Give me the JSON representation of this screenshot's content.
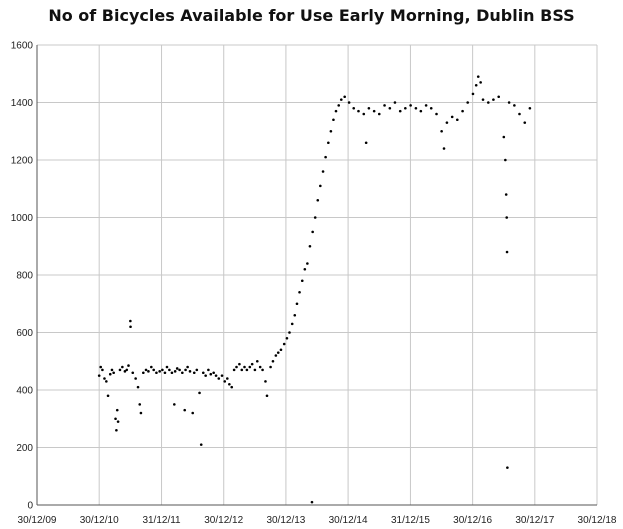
{
  "chart_data": {
    "type": "scatter",
    "title": "No of Bicycles Available for Use Early Morning, Dublin BSS",
    "xlabel": "",
    "ylabel": "",
    "x_axis": {
      "type": "date",
      "ticks": [
        "30/12/09",
        "30/12/10",
        "31/12/11",
        "30/12/12",
        "30/12/13",
        "30/12/14",
        "31/12/15",
        "30/12/16",
        "30/12/17",
        "30/12/18"
      ]
    },
    "ylim": [
      0,
      1600
    ],
    "y_ticks": [
      0,
      200,
      400,
      600,
      800,
      1000,
      1200,
      1400,
      1600
    ],
    "grid": true,
    "marker_color": "#000000",
    "grid_color": "#c8c8c8",
    "series": [
      {
        "points": [
          {
            "x": "2010-12-30",
            "y": 450
          },
          {
            "x": "2011-01-08",
            "y": 480
          },
          {
            "x": "2011-01-18",
            "y": 470
          },
          {
            "x": "2011-01-30",
            "y": 440
          },
          {
            "x": "2011-02-10",
            "y": 430
          },
          {
            "x": "2011-02-20",
            "y": 380
          },
          {
            "x": "2011-03-05",
            "y": 455
          },
          {
            "x": "2011-03-15",
            "y": 470
          },
          {
            "x": "2011-03-25",
            "y": 460
          },
          {
            "x": "2011-04-05",
            "y": 300
          },
          {
            "x": "2011-04-10",
            "y": 260
          },
          {
            "x": "2011-04-15",
            "y": 330
          },
          {
            "x": "2011-04-20",
            "y": 290
          },
          {
            "x": "2011-05-01",
            "y": 470
          },
          {
            "x": "2011-05-15",
            "y": 480
          },
          {
            "x": "2011-05-30",
            "y": 465
          },
          {
            "x": "2011-06-10",
            "y": 470
          },
          {
            "x": "2011-06-20",
            "y": 485
          },
          {
            "x": "2011-07-01",
            "y": 640
          },
          {
            "x": "2011-07-02",
            "y": 620
          },
          {
            "x": "2011-07-15",
            "y": 460
          },
          {
            "x": "2011-08-01",
            "y": 440
          },
          {
            "x": "2011-08-15",
            "y": 410
          },
          {
            "x": "2011-08-25",
            "y": 350
          },
          {
            "x": "2011-09-01",
            "y": 320
          },
          {
            "x": "2011-09-15",
            "y": 460
          },
          {
            "x": "2011-10-01",
            "y": 470
          },
          {
            "x": "2011-10-15",
            "y": 465
          },
          {
            "x": "2011-11-01",
            "y": 480
          },
          {
            "x": "2011-11-15",
            "y": 470
          },
          {
            "x": "2011-12-01",
            "y": 460
          },
          {
            "x": "2011-12-20",
            "y": 465
          },
          {
            "x": "2012-01-05",
            "y": 470
          },
          {
            "x": "2012-01-20",
            "y": 460
          },
          {
            "x": "2012-02-01",
            "y": 480
          },
          {
            "x": "2012-02-15",
            "y": 470
          },
          {
            "x": "2012-03-01",
            "y": 460
          },
          {
            "x": "2012-03-15",
            "y": 350
          },
          {
            "x": "2012-03-20",
            "y": 465
          },
          {
            "x": "2012-04-01",
            "y": 475
          },
          {
            "x": "2012-04-15",
            "y": 470
          },
          {
            "x": "2012-05-01",
            "y": 460
          },
          {
            "x": "2012-05-15",
            "y": 330
          },
          {
            "x": "2012-05-20",
            "y": 470
          },
          {
            "x": "2012-06-01",
            "y": 480
          },
          {
            "x": "2012-06-15",
            "y": 465
          },
          {
            "x": "2012-07-01",
            "y": 320
          },
          {
            "x": "2012-07-10",
            "y": 460
          },
          {
            "x": "2012-07-25",
            "y": 470
          },
          {
            "x": "2012-08-10",
            "y": 390
          },
          {
            "x": "2012-08-20",
            "y": 210
          },
          {
            "x": "2012-09-01",
            "y": 460
          },
          {
            "x": "2012-09-15",
            "y": 450
          },
          {
            "x": "2012-10-01",
            "y": 470
          },
          {
            "x": "2012-10-15",
            "y": 455
          },
          {
            "x": "2012-11-01",
            "y": 460
          },
          {
            "x": "2012-11-15",
            "y": 450
          },
          {
            "x": "2012-12-01",
            "y": 440
          },
          {
            "x": "2012-12-20",
            "y": 450
          },
          {
            "x": "2013-01-05",
            "y": 430
          },
          {
            "x": "2013-01-20",
            "y": 440
          },
          {
            "x": "2013-02-01",
            "y": 420
          },
          {
            "x": "2013-02-15",
            "y": 410
          },
          {
            "x": "2013-03-01",
            "y": 470
          },
          {
            "x": "2013-03-15",
            "y": 480
          },
          {
            "x": "2013-04-01",
            "y": 490
          },
          {
            "x": "2013-04-15",
            "y": 470
          },
          {
            "x": "2013-05-01",
            "y": 480
          },
          {
            "x": "2013-05-15",
            "y": 470
          },
          {
            "x": "2013-06-01",
            "y": 480
          },
          {
            "x": "2013-06-15",
            "y": 490
          },
          {
            "x": "2013-07-01",
            "y": 470
          },
          {
            "x": "2013-07-15",
            "y": 500
          },
          {
            "x": "2013-08-01",
            "y": 480
          },
          {
            "x": "2013-08-15",
            "y": 470
          },
          {
            "x": "2013-09-01",
            "y": 430
          },
          {
            "x": "2013-09-10",
            "y": 380
          },
          {
            "x": "2013-10-01",
            "y": 480
          },
          {
            "x": "2013-10-15",
            "y": 500
          },
          {
            "x": "2013-11-01",
            "y": 520
          },
          {
            "x": "2013-11-15",
            "y": 530
          },
          {
            "x": "2013-12-01",
            "y": 540
          },
          {
            "x": "2013-12-20",
            "y": 560
          },
          {
            "x": "2014-01-05",
            "y": 580
          },
          {
            "x": "2014-01-20",
            "y": 600
          },
          {
            "x": "2014-02-05",
            "y": 630
          },
          {
            "x": "2014-02-20",
            "y": 660
          },
          {
            "x": "2014-03-05",
            "y": 700
          },
          {
            "x": "2014-03-20",
            "y": 740
          },
          {
            "x": "2014-04-05",
            "y": 780
          },
          {
            "x": "2014-04-20",
            "y": 820
          },
          {
            "x": "2014-05-05",
            "y": 840
          },
          {
            "x": "2014-05-20",
            "y": 900
          },
          {
            "x": "2014-06-05",
            "y": 950
          },
          {
            "x": "2014-06-20",
            "y": 1000
          },
          {
            "x": "2014-06-01",
            "y": 10
          },
          {
            "x": "2014-07-05",
            "y": 1060
          },
          {
            "x": "2014-07-20",
            "y": 1110
          },
          {
            "x": "2014-08-05",
            "y": 1160
          },
          {
            "x": "2014-08-20",
            "y": 1210
          },
          {
            "x": "2014-09-05",
            "y": 1260
          },
          {
            "x": "2014-09-20",
            "y": 1300
          },
          {
            "x": "2014-10-05",
            "y": 1340
          },
          {
            "x": "2014-10-20",
            "y": 1370
          },
          {
            "x": "2014-11-05",
            "y": 1390
          },
          {
            "x": "2014-11-20",
            "y": 1410
          },
          {
            "x": "2014-12-10",
            "y": 1420
          },
          {
            "x": "2015-01-05",
            "y": 1400
          },
          {
            "x": "2015-02-01",
            "y": 1380
          },
          {
            "x": "2015-03-01",
            "y": 1370
          },
          {
            "x": "2015-04-01",
            "y": 1360
          },
          {
            "x": "2015-04-15",
            "y": 1260
          },
          {
            "x": "2015-05-01",
            "y": 1380
          },
          {
            "x": "2015-06-01",
            "y": 1370
          },
          {
            "x": "2015-07-01",
            "y": 1360
          },
          {
            "x": "2015-08-01",
            "y": 1390
          },
          {
            "x": "2015-09-01",
            "y": 1380
          },
          {
            "x": "2015-10-01",
            "y": 1400
          },
          {
            "x": "2015-11-01",
            "y": 1370
          },
          {
            "x": "2015-12-01",
            "y": 1380
          },
          {
            "x": "2016-01-01",
            "y": 1390
          },
          {
            "x": "2016-02-01",
            "y": 1380
          },
          {
            "x": "2016-03-01",
            "y": 1370
          },
          {
            "x": "2016-04-01",
            "y": 1390
          },
          {
            "x": "2016-05-01",
            "y": 1380
          },
          {
            "x": "2016-06-01",
            "y": 1360
          },
          {
            "x": "2016-07-01",
            "y": 1300
          },
          {
            "x": "2016-07-15",
            "y": 1240
          },
          {
            "x": "2016-08-01",
            "y": 1330
          },
          {
            "x": "2016-09-01",
            "y": 1350
          },
          {
            "x": "2016-10-01",
            "y": 1340
          },
          {
            "x": "2016-11-01",
            "y": 1370
          },
          {
            "x": "2016-12-01",
            "y": 1400
          },
          {
            "x": "2017-01-01",
            "y": 1430
          },
          {
            "x": "2017-01-20",
            "y": 1460
          },
          {
            "x": "2017-02-01",
            "y": 1490
          },
          {
            "x": "2017-02-15",
            "y": 1470
          },
          {
            "x": "2017-03-01",
            "y": 1410
          },
          {
            "x": "2017-04-01",
            "y": 1400
          },
          {
            "x": "2017-05-01",
            "y": 1410
          },
          {
            "x": "2017-06-01",
            "y": 1420
          },
          {
            "x": "2017-07-01",
            "y": 1280
          },
          {
            "x": "2017-07-10",
            "y": 1200
          },
          {
            "x": "2017-07-15",
            "y": 1080
          },
          {
            "x": "2017-07-18",
            "y": 1000
          },
          {
            "x": "2017-07-20",
            "y": 880
          },
          {
            "x": "2017-07-22",
            "y": 130
          },
          {
            "x": "2017-08-01",
            "y": 1400
          },
          {
            "x": "2017-09-01",
            "y": 1390
          },
          {
            "x": "2017-10-01",
            "y": 1360
          },
          {
            "x": "2017-11-01",
            "y": 1330
          },
          {
            "x": "2017-12-01",
            "y": 1380
          }
        ]
      }
    ]
  }
}
